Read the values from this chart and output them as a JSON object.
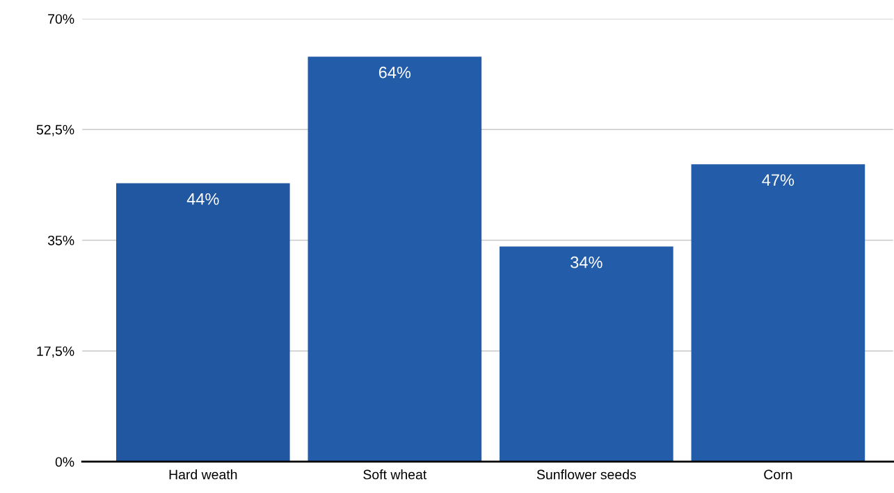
{
  "chart_data": {
    "type": "bar",
    "categories": [
      "Hard weath",
      "Soft wheat",
      "Sunflower seeds",
      "Corn"
    ],
    "values": [
      44,
      64,
      34,
      47
    ],
    "colors": [
      "#2157a0",
      "#235ca8",
      "#235ca8",
      "#235ca8"
    ],
    "value_labels": [
      "44%",
      "64%",
      "34%",
      "47%"
    ],
    "ylim": [
      0,
      70
    ],
    "yticks": [
      {
        "value": 0,
        "label": "0%"
      },
      {
        "value": 17.5,
        "label": "17,5%"
      },
      {
        "value": 35,
        "label": "35%"
      },
      {
        "value": 52.5,
        "label": "52,5%"
      },
      {
        "value": 70,
        "label": "70%"
      }
    ],
    "grid": "y",
    "legend": false
  }
}
